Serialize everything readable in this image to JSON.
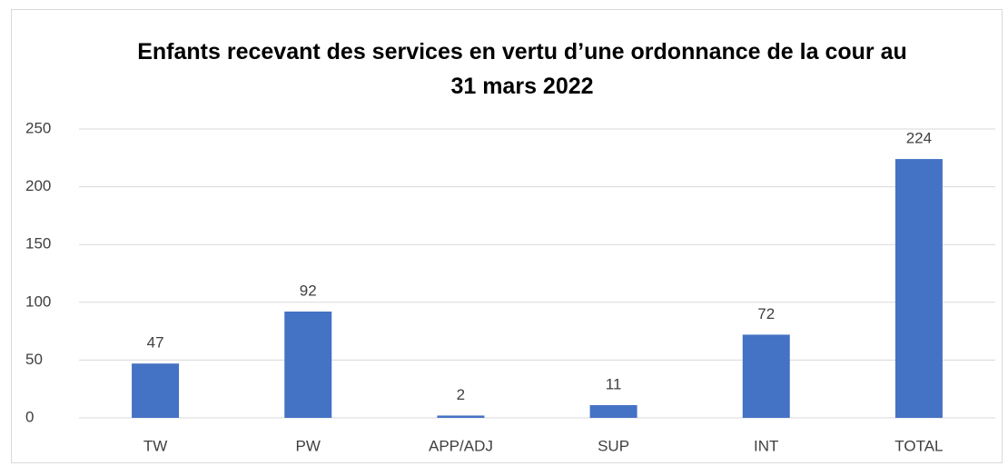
{
  "chart_data": {
    "type": "bar",
    "title": "Enfants recevant des services en vertu d’une ordonnance de la cour au 31 mars 2022",
    "categories": [
      "TW",
      "PW",
      "APP/ADJ",
      "SUP",
      "INT",
      "TOTAL"
    ],
    "values": [
      47,
      92,
      2,
      11,
      72,
      224
    ],
    "color": "#4472c4",
    "ylim": [
      0,
      250
    ],
    "yticks": [
      0,
      50,
      100,
      150,
      200,
      250
    ],
    "grid": true
  }
}
